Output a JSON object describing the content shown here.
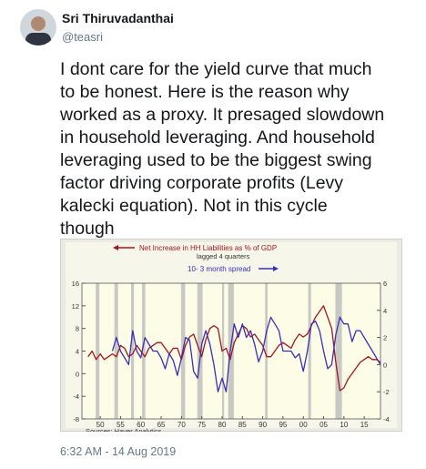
{
  "header": {
    "name": "Sri Thiruvadanthai",
    "handle": "@teasri"
  },
  "tweet": {
    "lines": [
      "I dont care for the yield curve that much",
      "to be honest. Here is the reason why",
      "worked as a proxy. It presaged slowdown",
      "in household leveraging. And household",
      "leveraging used to be the biggest swing",
      "factor driving corporate profits (Levy",
      "kalecki equation). Not in this cycle",
      "though"
    ]
  },
  "chart_data": {
    "type": "line",
    "source": "Sources:  Haver Analytics",
    "xlim": [
      1945.5,
      2019
    ],
    "xticks": [
      {
        "value": 1950,
        "label": "50"
      },
      {
        "value": 1955,
        "label": "55"
      },
      {
        "value": 1960,
        "label": "60"
      },
      {
        "value": 1965,
        "label": "65"
      },
      {
        "value": 1970,
        "label": "70"
      },
      {
        "value": 1975,
        "label": "75"
      },
      {
        "value": 1980,
        "label": "80"
      },
      {
        "value": 1985,
        "label": "85"
      },
      {
        "value": 1990,
        "label": "90"
      },
      {
        "value": 1995,
        "label": "95"
      },
      {
        "value": 2000,
        "label": "00"
      },
      {
        "value": 2005,
        "label": "05"
      },
      {
        "value": 2010,
        "label": "10"
      },
      {
        "value": 2015,
        "label": "15"
      }
    ],
    "ylim": [
      -8,
      16
    ],
    "yticks": [
      -8,
      -4,
      0,
      4,
      8,
      12,
      16
    ],
    "y2lim": [
      -4,
      6
    ],
    "y2ticks": [
      -4,
      -2,
      0,
      2,
      4,
      6
    ],
    "shaded_periods": [
      [
        1948.9,
        1949.8
      ],
      [
        1953.5,
        1954.4
      ],
      [
        1957.6,
        1958.3
      ],
      [
        1960.3,
        1961.1
      ],
      [
        1969.9,
        1970.9
      ],
      [
        1973.9,
        1975.2
      ],
      [
        1980.0,
        1980.5
      ],
      [
        1981.5,
        1982.9
      ],
      [
        1990.6,
        1991.2
      ],
      [
        2001.2,
        2001.9
      ],
      [
        2007.9,
        2009.5
      ]
    ],
    "series": [
      {
        "name": "Net Increase in HH Liabilities as % of GDP",
        "note": "lagged 4 quarters",
        "color": "#a3141c",
        "x": [
          1947,
          1948,
          1949,
          1950,
          1951,
          1952,
          1953,
          1954,
          1955,
          1956,
          1957,
          1958,
          1959,
          1960,
          1961,
          1962,
          1963,
          1964,
          1965,
          1966,
          1967,
          1968,
          1969,
          1970,
          1971,
          1972,
          1973,
          1974,
          1975,
          1976,
          1977,
          1978,
          1979,
          1980,
          1981,
          1982,
          1983,
          1984,
          1985,
          1986,
          1987,
          1988,
          1989,
          1990,
          1991,
          1992,
          1993,
          1994,
          1995,
          1996,
          1997,
          1998,
          1999,
          2000,
          2001,
          2002,
          2003,
          2004,
          2005,
          2006,
          2007,
          2008,
          2009,
          2010,
          2011,
          2012,
          2013,
          2014,
          2015,
          2016,
          2017,
          2018,
          2019
        ],
        "values": [
          3,
          4,
          2.5,
          3.5,
          2.5,
          3,
          3.5,
          3,
          5,
          4.5,
          3,
          3.5,
          5,
          4,
          3,
          4.5,
          5,
          5.5,
          5.5,
          4.5,
          3.5,
          4.5,
          4.5,
          2.5,
          5,
          6.5,
          7,
          5,
          3,
          6,
          8,
          8.5,
          8,
          4,
          4.5,
          2.5,
          5.5,
          7,
          8.5,
          8,
          6.5,
          7,
          6,
          5,
          3,
          3,
          4,
          5,
          5.5,
          5,
          4.5,
          6,
          7,
          6.5,
          7,
          8.5,
          10,
          11,
          12,
          10,
          8,
          2,
          -3,
          -2.5,
          -1,
          0,
          1,
          2,
          2.5,
          3,
          2.5,
          2.5,
          2
        ]
      },
      {
        "name": "10- 3 month spread",
        "color": "#3b2fb5",
        "axis": "y2",
        "x": [
          1953,
          1954,
          1955,
          1956,
          1957,
          1958,
          1959,
          1960,
          1961,
          1962,
          1963,
          1964,
          1965,
          1966,
          1967,
          1968,
          1969,
          1970,
          1971,
          1972,
          1973,
          1974,
          1975,
          1976,
          1977,
          1978,
          1979,
          1980,
          1981,
          1982,
          1983,
          1984,
          1985,
          1986,
          1987,
          1988,
          1989,
          1990,
          1991,
          1992,
          1993,
          1994,
          1995,
          1996,
          1997,
          1998,
          1999,
          2000,
          2001,
          2002,
          2003,
          2004,
          2005,
          2006,
          2007,
          2008,
          2009,
          2010,
          2011,
          2012,
          2013,
          2014,
          2015,
          2016,
          2017,
          2018,
          2019
        ],
        "values": [
          1,
          2,
          1,
          0.5,
          0,
          2.5,
          1,
          0.5,
          2,
          1.5,
          1,
          1,
          0.5,
          -0.3,
          0.8,
          0.3,
          -0.8,
          0.5,
          2,
          1.8,
          -0.5,
          -1,
          1.5,
          2.5,
          1.5,
          0,
          -2,
          -1,
          -2,
          1,
          3,
          2,
          3,
          2,
          2.5,
          1.5,
          0.2,
          1,
          2.5,
          3.5,
          3,
          2.5,
          1,
          1,
          1,
          0.5,
          0.8,
          -0.5,
          1,
          3,
          3.2,
          2.5,
          1,
          -0.3,
          0,
          2.2,
          3.5,
          3,
          3,
          1.7,
          2.5,
          2.5,
          2,
          1.5,
          1,
          0.5,
          0
        ]
      }
    ]
  },
  "timestamp": "6:32 AM - 14 Aug 2019"
}
